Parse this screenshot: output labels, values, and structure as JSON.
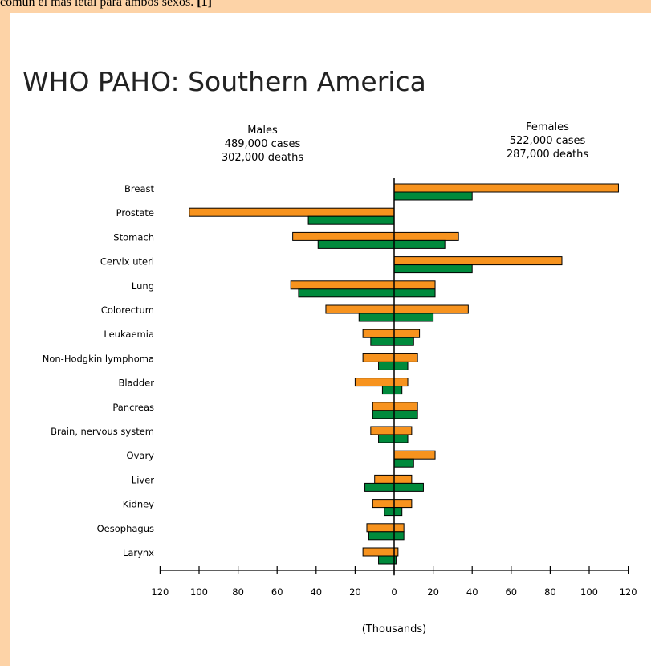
{
  "caption": {
    "text": "común el más letal para ambos sexos.",
    "citation": "[1]"
  },
  "chart_data": {
    "type": "bar",
    "title": "WHO PAHO: Southern America",
    "orientation": "horizontal-population-pyramid",
    "left_header": [
      "Males",
      "489,000 cases",
      "302,000 deaths"
    ],
    "right_header": [
      "Females",
      "522,000 cases",
      "287,000 deaths"
    ],
    "xlabel": "(Thousands)",
    "xlim": [
      -120,
      120
    ],
    "xticks": [
      "120",
      "100",
      "80",
      "60",
      "40",
      "20",
      "0",
      "20",
      "40",
      "60",
      "80",
      "100",
      "120"
    ],
    "categories": [
      "Breast",
      "Prostate",
      "Stomach",
      "Cervix uteri",
      "Lung",
      "Colorectum",
      "Leukaemia",
      "Non-Hodgkin lymphoma",
      "Bladder",
      "Pancreas",
      "Brain, nervous system",
      "Ovary",
      "Liver",
      "Kidney",
      "Oesophagus",
      "Larynx"
    ],
    "series": [
      {
        "group": "Males",
        "measure": "cases",
        "color": "#f7931e",
        "values": [
          0,
          105,
          52,
          0,
          53,
          35,
          16,
          16,
          20,
          11,
          12,
          0,
          10,
          11,
          14,
          16
        ]
      },
      {
        "group": "Males",
        "measure": "deaths",
        "color": "#008a3c",
        "values": [
          0,
          44,
          39,
          0,
          49,
          18,
          12,
          8,
          6,
          11,
          8,
          0,
          15,
          5,
          13,
          8
        ]
      },
      {
        "group": "Females",
        "measure": "cases",
        "color": "#f7931e",
        "values": [
          115,
          0,
          33,
          86,
          21,
          38,
          13,
          12,
          7,
          12,
          9,
          21,
          9,
          9,
          5,
          2
        ]
      },
      {
        "group": "Females",
        "measure": "deaths",
        "color": "#008a3c",
        "values": [
          40,
          0,
          26,
          40,
          21,
          20,
          10,
          7,
          4,
          12,
          7,
          10,
          15,
          4,
          5,
          1
        ]
      }
    ]
  }
}
